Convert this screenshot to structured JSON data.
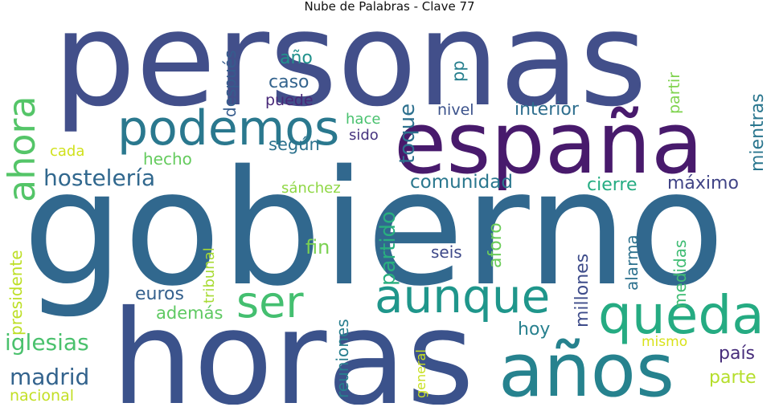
{
  "title": "Nube de Palabras - Clave 77",
  "words": [
    "personas",
    "gobierno",
    "horas",
    "españa",
    "años",
    "podemos",
    "queda",
    "aunque",
    "ahora",
    "ser",
    "hostelería",
    "madrid",
    "iglesias",
    "presidente",
    "nacional",
    "cada",
    "hecho",
    "euros",
    "además",
    "tribunal",
    "según",
    "sánchez",
    "fin",
    "partido",
    "toque",
    "comunidad",
    "cierre",
    "máximo",
    "año",
    "caso",
    "después",
    "puede",
    "pp",
    "hace",
    "sido",
    "nivel",
    "interior",
    "partir",
    "mientras",
    "seis",
    "aforo",
    "millones",
    "alarma",
    "medidas",
    "reuniones",
    "general",
    "hoy",
    "mismo",
    "país",
    "parte"
  ],
  "colors": {
    "background": "#ffffff",
    "palette": "viridis"
  }
}
